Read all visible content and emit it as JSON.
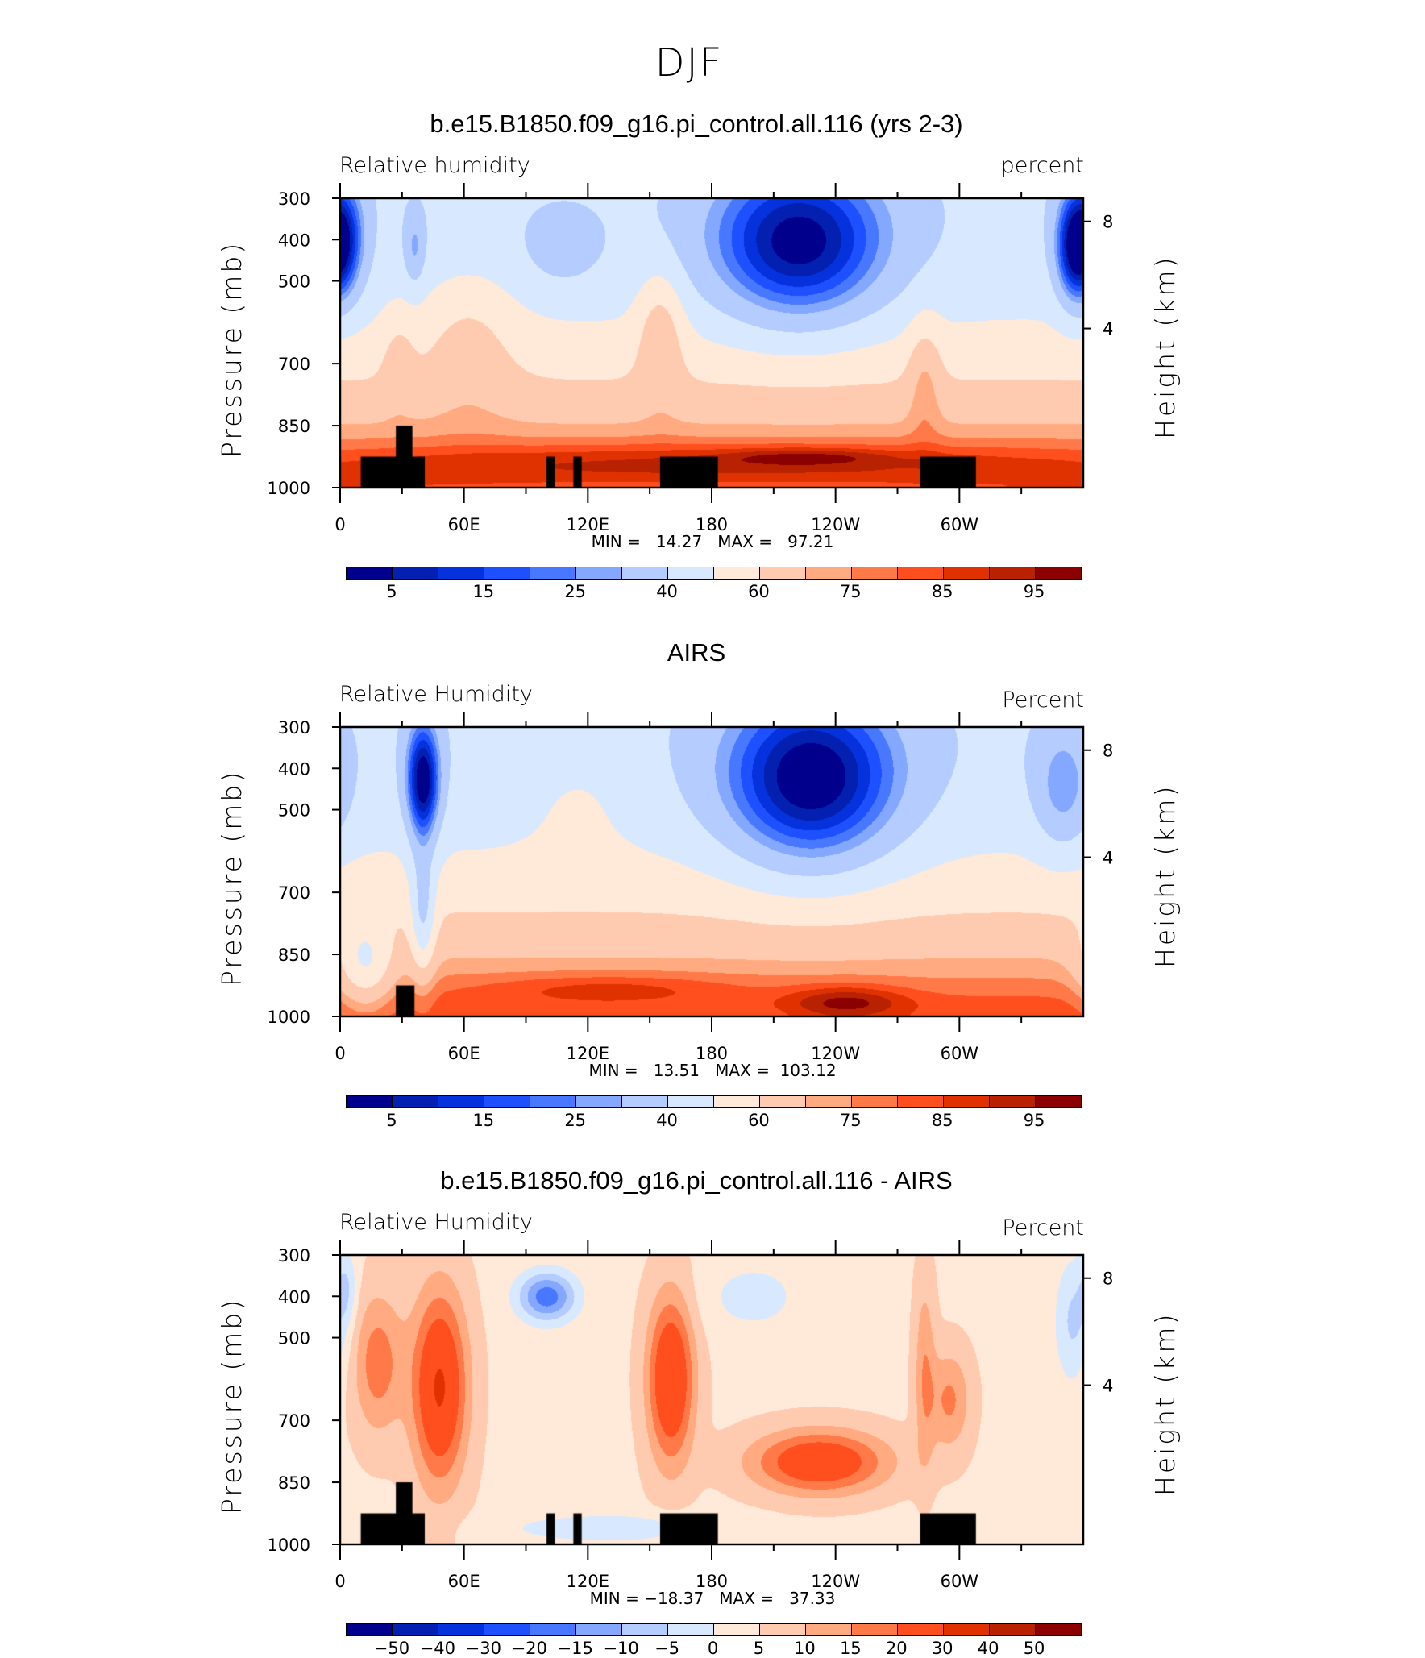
{
  "page_title": "DJF",
  "colors": [
    "#00008c",
    "#0320b0",
    "#0532dc",
    "#1e50ff",
    "#4878ff",
    "#84a8ff",
    "#b4ccff",
    "#d8e9ff",
    "#ffe9d8",
    "#ffcbb0",
    "#ffaa80",
    "#ff7a48",
    "#ff4f1e",
    "#e03200",
    "#b82200",
    "#8b0000"
  ],
  "chart_data": [
    {
      "type": "heatmap",
      "title": "b.e15.B1850.f09_g16.pi_control.all.116 (yrs 2-3)",
      "left_string": "Relative humidity",
      "right_string": "percent",
      "xlabel": "",
      "ylabel": "Pressure (mb)",
      "ylabel_right": "Height (km)",
      "x_ticks": [
        "0",
        "60E",
        "120E",
        "180",
        "120W",
        "60W"
      ],
      "y_ticks": [
        "300",
        "400",
        "500",
        "700",
        "850",
        "1000"
      ],
      "y_ticks_right": [
        "8",
        "4"
      ],
      "xlim": [
        0,
        360
      ],
      "ylim": [
        1000,
        300
      ],
      "min_label": "MIN =   14.27",
      "max_label": "MAX =   97.21",
      "levels": [
        5,
        10,
        15,
        20,
        25,
        30,
        40,
        50,
        60,
        70,
        75,
        80,
        85,
        90,
        95
      ],
      "level_labels": [
        "5",
        "15",
        "25",
        "40",
        "60",
        "75",
        "85",
        "95"
      ],
      "min": 14.27,
      "max": 97.21
    },
    {
      "type": "heatmap",
      "title": "AIRS",
      "left_string": "Relative Humidity",
      "right_string": "Percent",
      "ylabel": "Pressure (mb)",
      "ylabel_right": "Height (km)",
      "x_ticks": [
        "0",
        "60E",
        "120E",
        "180",
        "120W",
        "60W"
      ],
      "y_ticks": [
        "300",
        "400",
        "500",
        "700",
        "850",
        "1000"
      ],
      "y_ticks_right": [
        "8",
        "4"
      ],
      "xlim": [
        0,
        360
      ],
      "ylim": [
        1000,
        300
      ],
      "min_label": "MIN =   13.51",
      "max_label": "MAX =  103.12",
      "levels": [
        5,
        10,
        15,
        20,
        25,
        30,
        40,
        50,
        60,
        70,
        75,
        80,
        85,
        90,
        95
      ],
      "level_labels": [
        "5",
        "15",
        "25",
        "40",
        "60",
        "75",
        "85",
        "95"
      ],
      "min": 13.51,
      "max": 103.12
    },
    {
      "type": "heatmap",
      "title": "b.e15.B1850.f09_g16.pi_control.all.116 - AIRS",
      "left_string": "Relative Humidity",
      "right_string": "Percent",
      "ylabel": "Pressure (mb)",
      "ylabel_right": "Height (km)",
      "x_ticks": [
        "0",
        "60E",
        "120E",
        "180",
        "120W",
        "60W"
      ],
      "y_ticks": [
        "300",
        "400",
        "500",
        "700",
        "850",
        "1000"
      ],
      "y_ticks_right": [
        "8",
        "4"
      ],
      "xlim": [
        0,
        360
      ],
      "ylim": [
        1000,
        300
      ],
      "min_label": "MIN = −18.37",
      "max_label": "MAX =   37.33",
      "levels": [
        -50,
        -40,
        -30,
        -20,
        -15,
        -10,
        -5,
        0,
        5,
        10,
        15,
        20,
        30,
        40,
        50
      ],
      "level_labels": [
        "−50",
        "−40",
        "−30",
        "−20",
        "−15",
        "−10",
        "−5",
        "0",
        "5",
        "10",
        "15",
        "20",
        "30",
        "40",
        "50"
      ],
      "min": -18.37,
      "max": 37.33
    }
  ]
}
